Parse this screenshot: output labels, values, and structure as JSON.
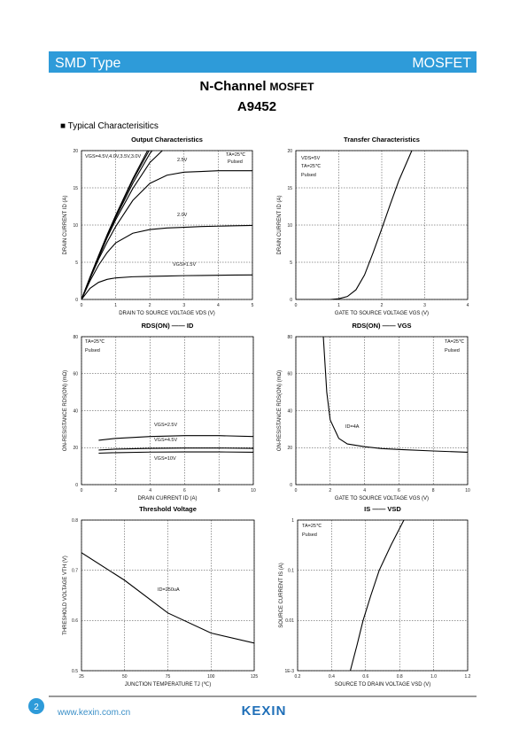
{
  "header": {
    "left": "SMD Type",
    "right": "MOSFET"
  },
  "title": {
    "main": "N-Channel",
    "sub": "MOSFET"
  },
  "part": "A9452",
  "section": "■ Typical  Characterisitics",
  "footer": {
    "page": "2",
    "url": "www.kexin.com.cn",
    "logo": "KEXIN"
  },
  "chart_data": [
    {
      "type": "line",
      "title": "Output Characteristics",
      "x_label": "DRAIN TO SOURCE VOLTAGE   VDS   (V)",
      "y_label": "DRAIN CURRENT   ID   (A)",
      "xlim": [
        0,
        5
      ],
      "ylim": [
        0,
        20
      ],
      "xticks": [
        0,
        1,
        2,
        3,
        4,
        5
      ],
      "yticks": [
        0,
        5,
        10,
        15,
        20
      ],
      "grid": true,
      "color": "#000000",
      "annotations": [
        "TA=25℃",
        "Pulsed",
        "VGS=4.5V,4.0V,3.5V,3.0V",
        "2.5V",
        "2.0V",
        "VGS=1.5V"
      ],
      "x": [
        0,
        0.25,
        0.5,
        0.75,
        1,
        1.5,
        2,
        2.5,
        3,
        3.5,
        4,
        4.5,
        5
      ],
      "series": [
        {
          "values": [
            0,
            3.0,
            5.9,
            8.7,
            11.3,
            16.2,
            20.6,
            null,
            null,
            null,
            null,
            null,
            null
          ]
        },
        {
          "values": [
            0,
            3.0,
            5.8,
            8.6,
            11.2,
            16.0,
            20.2,
            null,
            null,
            null,
            null,
            null,
            null
          ]
        },
        {
          "values": [
            0,
            2.9,
            5.7,
            8.5,
            11.0,
            15.6,
            19.6,
            22.5,
            null,
            null,
            null,
            null,
            null
          ]
        },
        {
          "values": [
            0,
            2.9,
            5.6,
            8.3,
            10.7,
            14.9,
            18.4,
            20.6,
            null,
            null,
            null,
            null,
            null
          ]
        },
        {
          "values": [
            0,
            2.8,
            5.4,
            7.7,
            9.8,
            13.3,
            15.6,
            16.7,
            17.1,
            17.2,
            17.3,
            17.3,
            17.3
          ]
        },
        {
          "values": [
            0,
            2.5,
            4.6,
            6.3,
            7.6,
            8.9,
            9.4,
            9.6,
            9.7,
            9.8,
            9.85,
            9.9,
            9.95
          ]
        },
        {
          "values": [
            0,
            1.5,
            2.3,
            2.7,
            2.9,
            3.05,
            3.1,
            3.15,
            3.2,
            3.22,
            3.25,
            3.28,
            3.3
          ]
        }
      ]
    },
    {
      "type": "line",
      "title": "Transfer Characteristics",
      "x_label": "GATE TO SOURCE VOLTAGE   VGS   (V)",
      "y_label": "DRAIN CURRENT   ID   (A)",
      "xlim": [
        0,
        4
      ],
      "ylim": [
        0,
        20
      ],
      "xticks": [
        0,
        1,
        2,
        3,
        4
      ],
      "yticks": [
        0,
        5,
        10,
        15,
        20
      ],
      "grid": true,
      "color": "#000000",
      "annotations": [
        "VDS=5V",
        "TA=25℃",
        "Pulsed"
      ],
      "x": [
        0,
        0.8,
        1,
        1.2,
        1.4,
        1.6,
        1.8,
        2,
        2.2,
        2.4,
        2.7
      ],
      "series": [
        {
          "values": [
            0,
            0,
            0.1,
            0.4,
            1.3,
            3.3,
            6.3,
            9.5,
            12.8,
            16,
            20
          ]
        }
      ]
    },
    {
      "type": "line",
      "title": "RDS(ON) —— ID",
      "x_label": "DRAIN CURRENT   ID   (A)",
      "y_label": "ON-RESISTANCE   RDS(ON)   (mΩ)",
      "xlim": [
        0,
        10
      ],
      "ylim": [
        0,
        80
      ],
      "xticks": [
        0,
        2,
        4,
        6,
        8,
        10
      ],
      "yticks": [
        0,
        20,
        40,
        60,
        80
      ],
      "grid": true,
      "color": "#000000",
      "annotations": [
        "TA=25℃",
        "Pulsed",
        "VGS=2.5V",
        "VGS=4.5V",
        "VGS=10V"
      ],
      "x": [
        1,
        2,
        4,
        6,
        8,
        10
      ],
      "series": [
        {
          "values": [
            24,
            25,
            26,
            26.5,
            26.5,
            26
          ]
        },
        {
          "values": [
            18.7,
            19.2,
            19.6,
            19.8,
            19.8,
            19.6
          ]
        },
        {
          "values": [
            17,
            17.3,
            17.6,
            17.7,
            17.7,
            17.5
          ]
        }
      ]
    },
    {
      "type": "line",
      "title": "RDS(ON) —— VGS",
      "x_label": "GATE TO SOURCE VOLTAGE   VGS   (V)",
      "y_label": "ON-RESISTANCE   RDS(ON)   (mΩ)",
      "xlim": [
        0,
        10
      ],
      "ylim": [
        0,
        80
      ],
      "xticks": [
        0,
        2,
        4,
        6,
        8,
        10
      ],
      "yticks": [
        0,
        20,
        40,
        60,
        80
      ],
      "grid": true,
      "color": "#000000",
      "annotations": [
        "TA=25℃",
        "Pulsed",
        "ID=4A"
      ],
      "x": [
        1.6,
        1.8,
        2,
        2.5,
        3,
        4,
        5,
        6,
        8,
        10
      ],
      "series": [
        {
          "values": [
            80,
            50,
            35,
            25,
            22,
            20.5,
            19.5,
            19,
            18.2,
            17.5
          ]
        }
      ]
    },
    {
      "type": "line",
      "title": "Threshold Voltage",
      "x_label": "JUNCTION TEMPERATURE   TJ   (℃)",
      "y_label": "THRESHOLD VOLTAGE   VTH   (V)",
      "xlim": [
        25,
        125
      ],
      "ylim": [
        0.5,
        0.8
      ],
      "xticks": [
        25,
        50,
        75,
        100,
        125
      ],
      "yticks": [
        0.5,
        0.6,
        0.7,
        0.8
      ],
      "grid": true,
      "color": "#000000",
      "annotations": [
        "ID=250uA"
      ],
      "x": [
        25,
        50,
        75,
        100,
        125
      ],
      "series": [
        {
          "values": [
            0.735,
            0.68,
            0.615,
            0.575,
            0.555
          ]
        }
      ]
    },
    {
      "type": "line",
      "title": "IS —— VSD",
      "x_label": "SOURCE TO DRAIN VOLTAGE   VSD   (V)",
      "y_label": "SOURCE CURRENT   IS   (A)",
      "xlim": [
        0.2,
        1.2
      ],
      "ylim": [
        0.001,
        1
      ],
      "ylog": true,
      "xticks": [
        0.2,
        0.4,
        0.6,
        0.8,
        {
          "value": 1,
          "label": "1.0"
        },
        1.2
      ],
      "yticks": [
        {
          "value": 0.001,
          "label": "1E-3"
        },
        0.01,
        0.1,
        1
      ],
      "grid": true,
      "color": "#000000",
      "annotations": [
        "TA=25℃",
        "Pulsed"
      ],
      "x": [
        0.51,
        0.55,
        0.585,
        0.63,
        0.68,
        0.75,
        0.825
      ],
      "series": [
        {
          "values": [
            0.001,
            0.0033,
            0.01,
            0.031,
            0.1,
            0.32,
            1
          ]
        }
      ]
    }
  ]
}
